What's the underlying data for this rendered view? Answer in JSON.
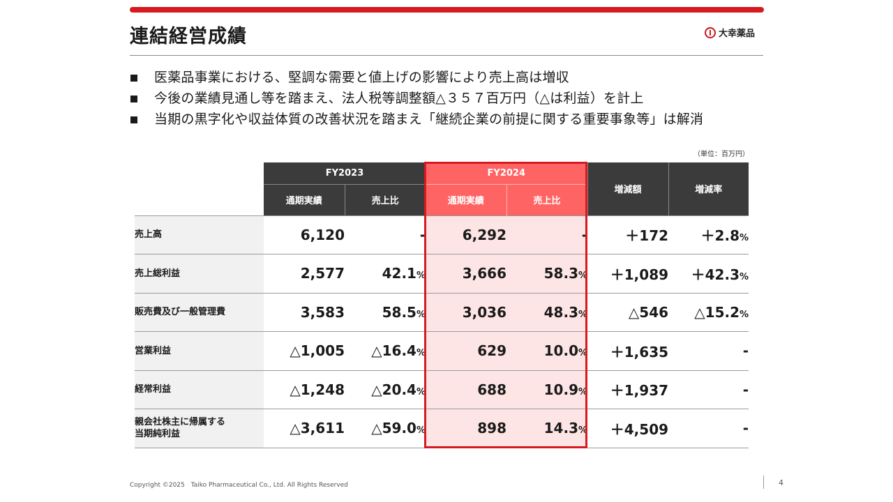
{
  "title": "連結経営成績",
  "logo_text": "大幸薬品",
  "bullets": [
    "医薬品事業における、堅調な需要と値上げの影響により売上高は増収",
    "今後の業績見通し等を踏まえ、法人税等調整額△３５７百万円（△は利益）を計上",
    "当期の黒字化や収益体質の改善状況を踏まえ「継続企業の前提に関する重要事象等」は解消"
  ],
  "unit": "（単位：百万円）",
  "table": {
    "fy2023": "FY2023",
    "fy2024": "FY2024",
    "col_result": "通期実績",
    "col_ratio": "売上比",
    "col_change": "増減額",
    "col_rate": "増減率",
    "rows": [
      {
        "label": "売上高",
        "fy23": "6,120",
        "fy23r": "-",
        "fy23r_unit": "",
        "fy24": "6,292",
        "fy24r": "-",
        "fy24r_unit": "",
        "chg": "＋172",
        "rate": "＋2.8",
        "rate_unit": "%"
      },
      {
        "label": "売上総利益",
        "fy23": "2,577",
        "fy23r": "42.1",
        "fy23r_unit": "%",
        "fy24": "3,666",
        "fy24r": "58.3",
        "fy24r_unit": "%",
        "chg": "＋1,089",
        "rate": "＋42.3",
        "rate_unit": "%"
      },
      {
        "label": "販売費及び一般管理費",
        "fy23": "3,583",
        "fy23r": "58.5",
        "fy23r_unit": "%",
        "fy24": "3,036",
        "fy24r": "48.3",
        "fy24r_unit": "%",
        "chg": "△546",
        "rate": "△15.2",
        "rate_unit": "%"
      },
      {
        "label": "営業利益",
        "fy23": "△1,005",
        "fy23r": "△16.4",
        "fy23r_unit": "%",
        "fy24": "629",
        "fy24r": "10.0",
        "fy24r_unit": "%",
        "chg": "＋1,635",
        "rate": "-",
        "rate_unit": ""
      },
      {
        "label": "経常利益",
        "fy23": "△1,248",
        "fy23r": "△20.4",
        "fy23r_unit": "%",
        "fy24": "688",
        "fy24r": "10.9",
        "fy24r_unit": "%",
        "chg": "＋1,937",
        "rate": "-",
        "rate_unit": ""
      },
      {
        "label_line1": "親会社株主に帰属する",
        "label_line2": "当期純利益",
        "fy23": "△3,611",
        "fy23r": "△59.0",
        "fy23r_unit": "%",
        "fy24": "898",
        "fy24r": "14.3",
        "fy24r_unit": "%",
        "chg": "＋4,509",
        "rate": "-",
        "rate_unit": ""
      }
    ]
  },
  "footer": "Copyright ©2025　Taiko Pharmaceutical Co., Ltd. All Rights Reserved",
  "page_number": "4",
  "colors": {
    "accent": "#d71920",
    "header_dark": "#3b3b3b",
    "header_pink": "#ff6464",
    "highlight": "#fde5e5"
  }
}
